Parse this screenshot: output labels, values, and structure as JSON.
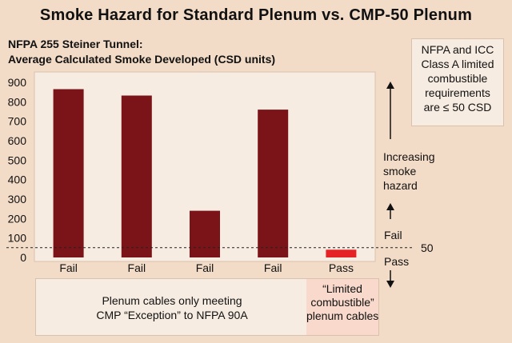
{
  "chart_data": {
    "type": "bar",
    "title": "Smoke Hazard for Standard Plenum vs. CMP-50 Plenum",
    "subtitle_lines": [
      "NFPA 255 Steiner Tunnel:",
      "Average Calculated Smoke Developed (CSD units)"
    ],
    "categories": [
      "Fail",
      "Fail",
      "Fail",
      "Fail",
      "Pass"
    ],
    "values": [
      865,
      832,
      240,
      760,
      40
    ],
    "bar_colors": [
      "#7b1418",
      "#7b1418",
      "#7b1418",
      "#7b1418",
      "#e52326"
    ],
    "ylim": [
      0,
      900
    ],
    "yticks": [
      0,
      100,
      200,
      300,
      400,
      500,
      600,
      700,
      800,
      900
    ],
    "threshold": {
      "value": 50,
      "label": "50"
    },
    "grid": false
  },
  "annotations": {
    "note_box": [
      "NFPA and ICC",
      "Class A limited",
      "combustible",
      "requirements",
      "are ≤ 50 CSD"
    ],
    "increasing": [
      "Increasing",
      "smoke",
      "hazard"
    ],
    "fail_label": "Fail",
    "pass_label": "Pass",
    "bottom_left": [
      "Plenum cables only meeting",
      "CMP “Exception” to NFPA 90A"
    ],
    "bottom_right": [
      "“Limited",
      "combustible”",
      "plenum cables"
    ]
  },
  "colors": {
    "background": "#f3dcc7",
    "panel": "#f7ece2",
    "fail_bar": "#7b1418",
    "pass_bar": "#e52326"
  }
}
